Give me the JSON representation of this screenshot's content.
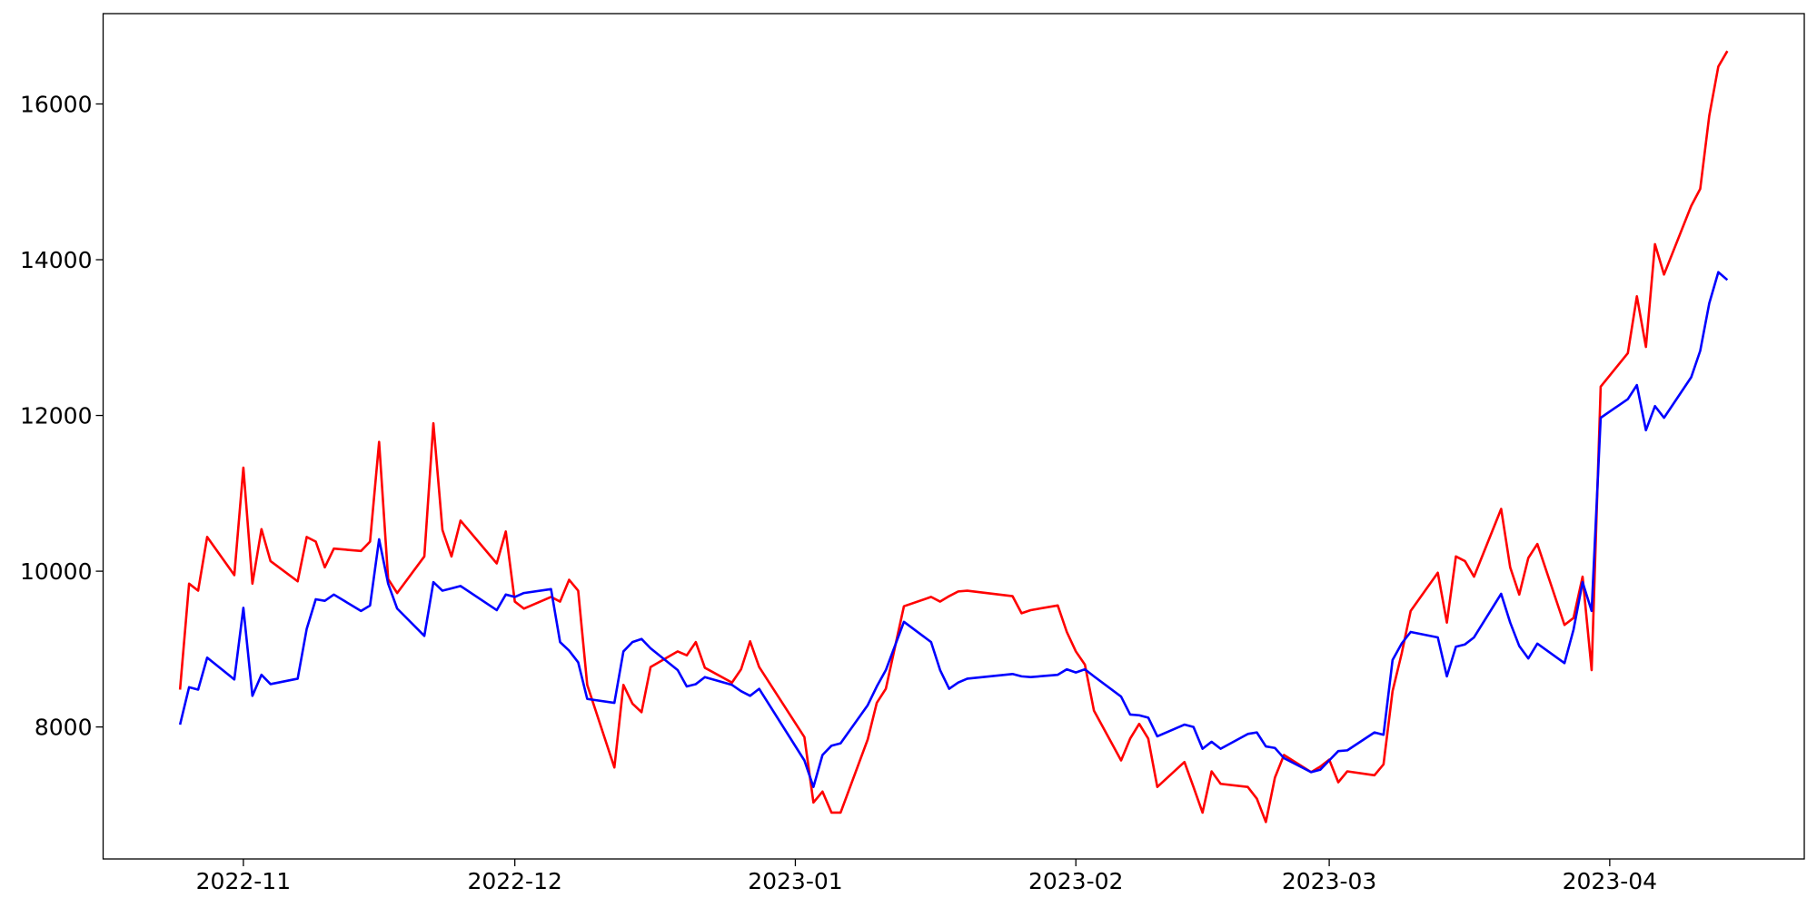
{
  "chart_data": {
    "type": "line",
    "x": [
      -7,
      -6,
      -5,
      -4,
      -1,
      0,
      1,
      2,
      3,
      6,
      7,
      8,
      9,
      10,
      13,
      14,
      15,
      16,
      17,
      20,
      21,
      22,
      23,
      24,
      28,
      29,
      30,
      31,
      34,
      35,
      36,
      37,
      38,
      41,
      42,
      43,
      44,
      45,
      48,
      49,
      50,
      51,
      54,
      55,
      56,
      57,
      62,
      63,
      64,
      65,
      66,
      69,
      70,
      71,
      73,
      76,
      77,
      78,
      79,
      80,
      85,
      86,
      87,
      90,
      91,
      92,
      93,
      94,
      97,
      98,
      99,
      100,
      101,
      104,
      105,
      106,
      107,
      108,
      111,
      112,
      113,
      114,
      115,
      118,
      119,
      120,
      121,
      122,
      125,
      126,
      127,
      128,
      129,
      132,
      133,
      134,
      135,
      136,
      139,
      140,
      141,
      142,
      143,
      146,
      147,
      148,
      149,
      150,
      153,
      154,
      155,
      156,
      157,
      160,
      161,
      162,
      163,
      164
    ],
    "series": [
      {
        "color": "#ff0000",
        "values": [
          8480,
          9840,
          9750,
          10440,
          9950,
          11330,
          9840,
          10540,
          10130,
          9870,
          10440,
          10380,
          10050,
          10290,
          10260,
          10380,
          11660,
          9900,
          9720,
          10190,
          11900,
          10530,
          10190,
          10650,
          10100,
          10510,
          9610,
          9520,
          9670,
          9610,
          9890,
          9750,
          8540,
          7480,
          8540,
          8300,
          8190,
          8770,
          8970,
          8920,
          9090,
          8760,
          8570,
          8740,
          9100,
          8770,
          7870,
          7030,
          7170,
          6900,
          6900,
          7840,
          8310,
          8490,
          9550,
          9670,
          9610,
          9680,
          9740,
          9750,
          9680,
          9460,
          9500,
          9560,
          9220,
          8970,
          8800,
          8210,
          7570,
          7850,
          8040,
          7850,
          7230,
          7550,
          7230,
          6900,
          7430,
          7270,
          7230,
          7080,
          6780,
          7350,
          7640,
          7420,
          7490,
          7580,
          7290,
          7430,
          7380,
          7520,
          8460,
          8940,
          9490,
          9980,
          9340,
          10190,
          10130,
          9930,
          10800,
          10050,
          9700,
          10170,
          10350,
          9310,
          9400,
          9930,
          8730,
          12370,
          12800,
          13530,
          12880,
          14200,
          13810,
          14690,
          14910,
          15850,
          16480,
          16680
        ]
      },
      {
        "color": "#0000ff",
        "values": [
          8030,
          8510,
          8480,
          8890,
          8610,
          9530,
          8400,
          8670,
          8550,
          8620,
          9260,
          9640,
          9620,
          9700,
          9490,
          9560,
          10410,
          9840,
          9520,
          9170,
          9860,
          9750,
          9780,
          9810,
          9500,
          9700,
          9670,
          9720,
          9770,
          9090,
          8980,
          8830,
          8360,
          8310,
          8970,
          9090,
          9130,
          9010,
          8730,
          8520,
          8550,
          8640,
          8540,
          8460,
          8400,
          8490,
          7570,
          7230,
          7640,
          7760,
          7790,
          8280,
          8520,
          8730,
          9350,
          9090,
          8730,
          8490,
          8570,
          8620,
          8680,
          8650,
          8640,
          8670,
          8740,
          8700,
          8740,
          8650,
          8390,
          8160,
          8150,
          8120,
          7880,
          8030,
          8000,
          7720,
          7810,
          7720,
          7910,
          7930,
          7750,
          7730,
          7600,
          7420,
          7450,
          7570,
          7690,
          7700,
          7930,
          7900,
          8860,
          9070,
          9220,
          9150,
          8650,
          9030,
          9060,
          9150,
          9710,
          9340,
          9040,
          8880,
          9070,
          8820,
          9250,
          9860,
          9490,
          11970,
          12210,
          12390,
          11810,
          12120,
          11970,
          12490,
          12830,
          13440,
          13840,
          13740
        ]
      }
    ],
    "xlim": [
      -15.5,
      172.5
    ],
    "xticks": [
      {
        "value": 0,
        "label": "2022-11"
      },
      {
        "value": 30,
        "label": "2022-12"
      },
      {
        "value": 61,
        "label": "2023-01"
      },
      {
        "value": 92,
        "label": "2023-02"
      },
      {
        "value": 120,
        "label": "2023-03"
      },
      {
        "value": 151,
        "label": "2023-04"
      }
    ],
    "ylim": [
      6305,
      17160
    ],
    "yticks": [
      8000,
      10000,
      12000,
      14000,
      16000
    ],
    "grid": false
  }
}
